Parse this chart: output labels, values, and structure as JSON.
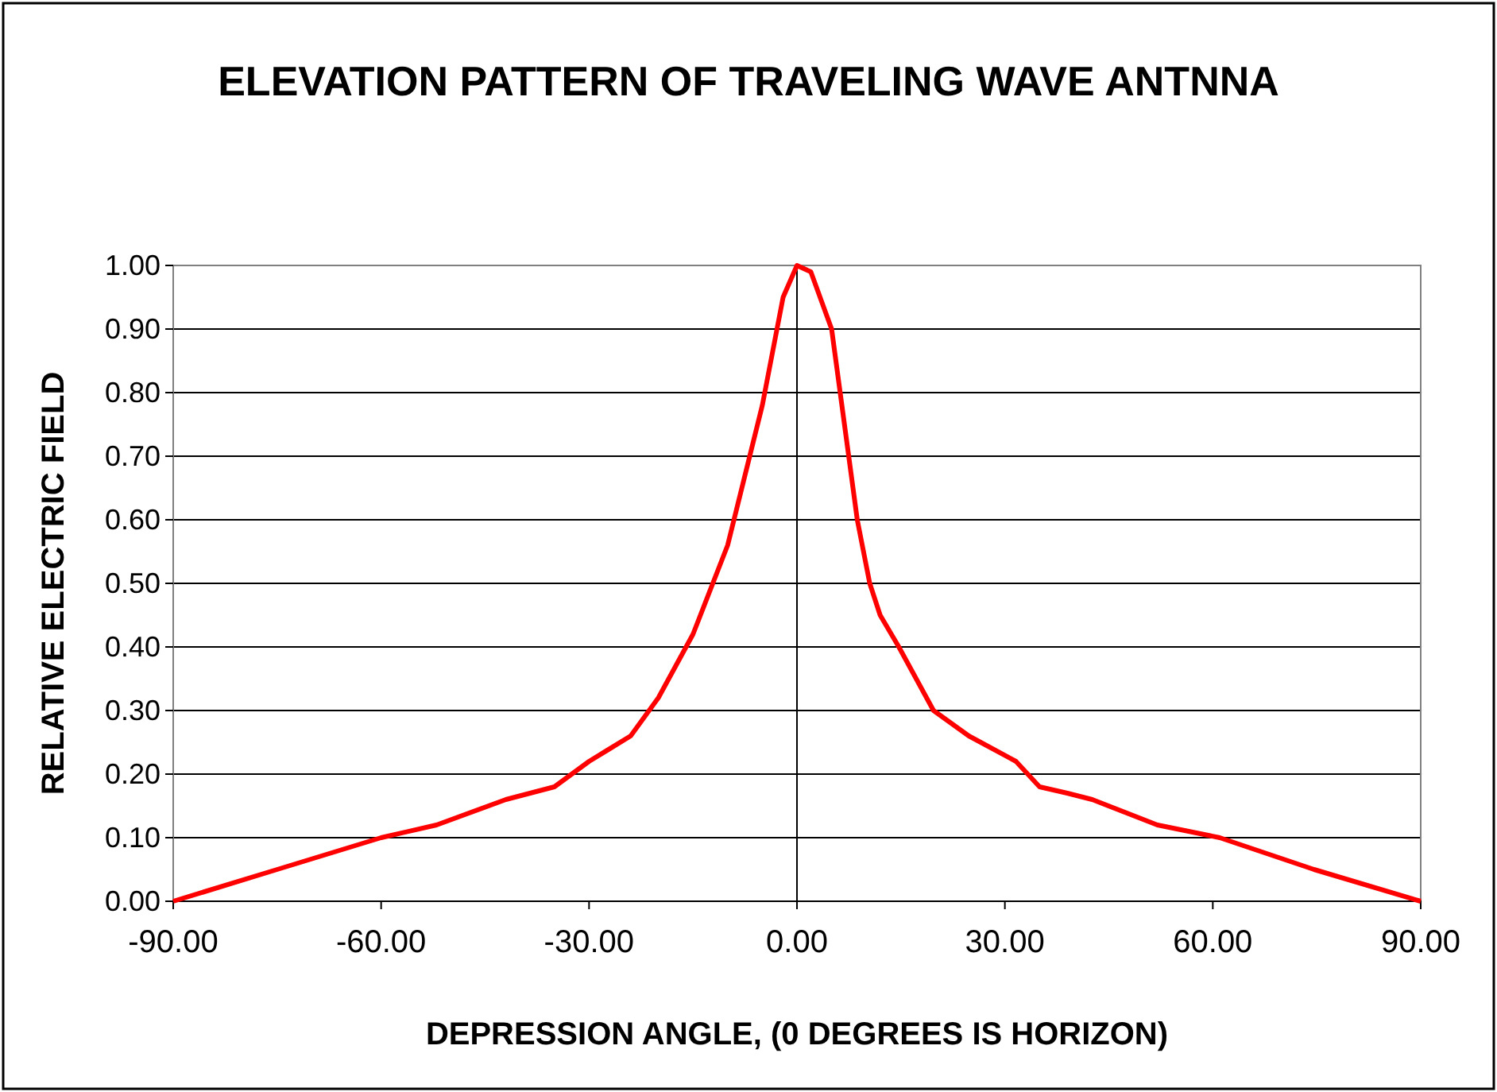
{
  "chart_data": {
    "type": "line",
    "title": "ELEVATION PATTERN OF TRAVELING WAVE ANTNNA",
    "xlabel": "DEPRESSION ANGLE, (0 DEGREES IS HORIZON)",
    "ylabel": "RELATIVE ELECTRIC FIELD",
    "xlim": [
      -90,
      90
    ],
    "ylim": [
      0,
      1
    ],
    "xticks": [
      {
        "value": -90,
        "label": "-90.00"
      },
      {
        "value": -60,
        "label": "-60.00"
      },
      {
        "value": -30,
        "label": "-30.00"
      },
      {
        "value": 0,
        "label": "0.00"
      },
      {
        "value": 30,
        "label": "30.00"
      },
      {
        "value": 60,
        "label": "60.00"
      },
      {
        "value": 90,
        "label": "90.00"
      }
    ],
    "yticks": [
      {
        "value": 0,
        "label": "0.00"
      },
      {
        "value": 0.1,
        "label": "0.10"
      },
      {
        "value": 0.2,
        "label": "0.20"
      },
      {
        "value": 0.3,
        "label": "0.30"
      },
      {
        "value": 0.4,
        "label": "0.40"
      },
      {
        "value": 0.5,
        "label": "0.50"
      },
      {
        "value": 0.6,
        "label": "0.60"
      },
      {
        "value": 0.7,
        "label": "0.70"
      },
      {
        "value": 0.8,
        "label": "0.80"
      },
      {
        "value": 0.9,
        "label": "0.90"
      },
      {
        "value": 1,
        "label": "1.00"
      }
    ],
    "grid": "y",
    "ref_lines": [
      {
        "axis": "x",
        "value": 0,
        "color": "#000000"
      }
    ],
    "marker": "none",
    "line_style": "solid",
    "series": [
      {
        "color": "#ff0000",
        "x": [
          -90,
          -75,
          -60,
          -52,
          -42,
          -35,
          -30,
          -24,
          -20,
          -15,
          -10,
          -5,
          -2,
          0,
          2,
          5,
          8.7,
          10.5,
          12,
          14.7,
          19.7,
          24.8,
          31.6,
          35,
          39,
          42.6,
          52,
          61,
          74.6,
          90
        ],
        "values": [
          0,
          0.05,
          0.1,
          0.12,
          0.16,
          0.18,
          0.22,
          0.26,
          0.32,
          0.42,
          0.56,
          0.78,
          0.95,
          1,
          0.99,
          0.9,
          0.6,
          0.5,
          0.45,
          0.4,
          0.3,
          0.26,
          0.22,
          0.18,
          0.17,
          0.16,
          0.12,
          0.1,
          0.05,
          0
        ]
      }
    ]
  }
}
